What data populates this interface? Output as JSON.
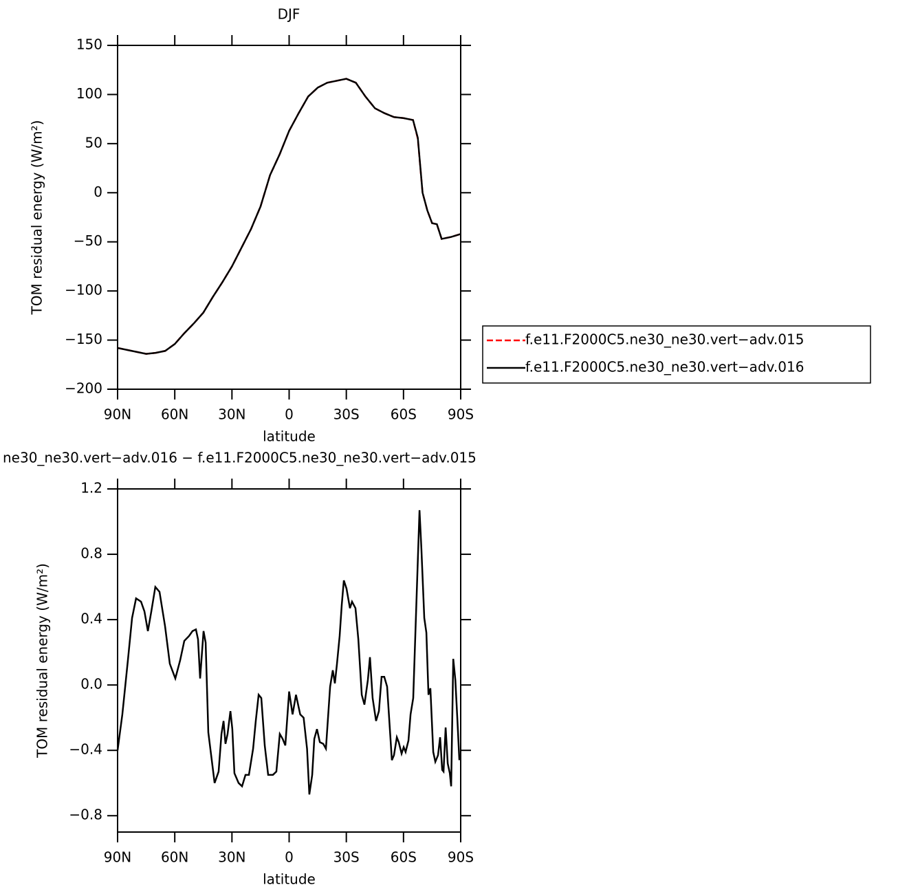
{
  "chart_data": [
    {
      "type": "line",
      "title": "DJF",
      "xlabel": "latitude",
      "ylabel": "TOM residual energy (W/m²)",
      "x": [
        90,
        85,
        80,
        75,
        70,
        65,
        60,
        55,
        50,
        45,
        40,
        35,
        30,
        25,
        20,
        15,
        10,
        5,
        0,
        -5,
        -10,
        -15,
        -20,
        -25,
        -30,
        -35,
        -40,
        -45,
        -50,
        -55,
        -60,
        -65,
        -67.5,
        -70,
        -72.5,
        -75,
        -77.5,
        -80,
        -85,
        -90
      ],
      "series": [
        {
          "name": "f.e11.F2000C5.ne30_ne30.vert−adv.015",
          "color": "#ff0000",
          "dashed": true,
          "values": [
            -158,
            -160,
            -162,
            -164,
            -163,
            -161,
            -154,
            -143,
            -133,
            -122,
            -106,
            -91,
            -75,
            -56,
            -37,
            -14,
            18,
            39,
            63,
            81,
            98,
            107,
            112,
            114,
            116,
            112,
            98,
            86,
            81,
            77,
            76,
            74,
            55,
            0,
            -18,
            -31,
            -32,
            -47,
            -45,
            -42
          ]
        },
        {
          "name": "f.e11.F2000C5.ne30_ne30.vert−adv.016",
          "color": "#000000",
          "dashed": false,
          "values": [
            -158,
            -160,
            -162,
            -164,
            -163,
            -161,
            -154,
            -143,
            -133,
            -122,
            -106,
            -91,
            -75,
            -56,
            -37,
            -14,
            18,
            39,
            63,
            81,
            98,
            107,
            112,
            114,
            116,
            112,
            98,
            86,
            81,
            77,
            76,
            74,
            56,
            0,
            -18,
            -31,
            -32,
            -47,
            -45,
            -42
          ]
        }
      ],
      "xlim": [
        90,
        -90
      ],
      "xticks": [
        {
          "value": 90,
          "label": "90N"
        },
        {
          "value": 60,
          "label": "60N"
        },
        {
          "value": 30,
          "label": "30N"
        },
        0,
        {
          "value": -30,
          "label": "30S"
        },
        {
          "value": -60,
          "label": "60S"
        },
        {
          "value": -90,
          "label": "90S"
        }
      ],
      "ylim": [
        -200,
        150
      ],
      "yticks": [
        {
          "value": -200,
          "label": "−200"
        },
        {
          "value": -150,
          "label": "−150"
        },
        {
          "value": -100,
          "label": "−100"
        },
        {
          "value": -50,
          "label": "−50"
        },
        0,
        50,
        100,
        150
      ],
      "legend": "outside-right"
    },
    {
      "type": "line",
      "title": "ne30_ne30.vert−adv.016 − f.e11.F2000C5.ne30_ne30.vert−adv.015",
      "xlabel": "latitude",
      "ylabel": "TOM residual energy (W/m²)",
      "x": [
        90,
        87.5,
        84.6,
        82.4,
        80.3,
        77.7,
        75.9,
        74.1,
        72.3,
        70.2,
        68.0,
        65.1,
        62.6,
        59.7,
        57.2,
        55.0,
        52.5,
        50.7,
        48.9,
        47.8,
        46.7,
        44.9,
        43.8,
        42.4,
        39.1,
        37.0,
        35.5,
        34.4,
        33.4,
        32.3,
        30.8,
        29.8,
        28.7,
        26.5,
        24.7,
        22.9,
        21.1,
        18.9,
        17.5,
        16.0,
        14.6,
        12.8,
        11.0,
        8.5,
        6.7,
        4.9,
        3.4,
        2.0,
        0,
        -1.8,
        -3.6,
        -5.8,
        -7.6,
        -9.4,
        -10.6,
        -12.1,
        -13.2,
        -14.6,
        -16.1,
        -17.9,
        -19.3,
        -21.5,
        -22.9,
        -24.0,
        -25.1,
        -26.5,
        -27.6,
        -28.7,
        -30.1,
        -31.9,
        -33.0,
        -34.8,
        -36.3,
        -38.1,
        -39.5,
        -41.3,
        -42.4,
        -43.8,
        -45.6,
        -47.1,
        -48.5,
        -49.9,
        -51.4,
        -53.9,
        -55.0,
        -56.5,
        -57.5,
        -59.0,
        -60.1,
        -61.1,
        -62.6,
        -63.7,
        -65.1,
        -66.9,
        -68.4,
        -69.4,
        -70.9,
        -72.0,
        -73.1,
        -74.1,
        -75.6,
        -76.7,
        -78.1,
        -79.2,
        -80.3,
        -81.0,
        -82.1,
        -83.2,
        -84.3,
        -85.0,
        -86.1,
        -87.2,
        -88.3,
        -89.3
      ],
      "color": "#000000",
      "values": [
        -0.4,
        -0.18,
        0.15,
        0.41,
        0.53,
        0.51,
        0.45,
        0.33,
        0.45,
        0.6,
        0.57,
        0.36,
        0.13,
        0.04,
        0.15,
        0.27,
        0.3,
        0.33,
        0.34,
        0.28,
        0.04,
        0.33,
        0.26,
        -0.29,
        -0.6,
        -0.53,
        -0.3,
        -0.22,
        -0.36,
        -0.3,
        -0.16,
        -0.27,
        -0.54,
        -0.6,
        -0.62,
        -0.55,
        -0.55,
        -0.39,
        -0.22,
        -0.06,
        -0.08,
        -0.37,
        -0.55,
        -0.55,
        -0.53,
        -0.3,
        -0.33,
        -0.37,
        -0.04,
        -0.18,
        -0.06,
        -0.18,
        -0.2,
        -0.39,
        -0.67,
        -0.55,
        -0.33,
        -0.27,
        -0.35,
        -0.36,
        -0.39,
        -0.01,
        0.09,
        0.01,
        0.13,
        0.3,
        0.49,
        0.64,
        0.59,
        0.47,
        0.51,
        0.47,
        0.28,
        -0.06,
        -0.12,
        0.03,
        0.17,
        -0.08,
        -0.22,
        -0.16,
        0.05,
        0.05,
        -0.01,
        -0.46,
        -0.43,
        -0.32,
        -0.35,
        -0.42,
        -0.38,
        -0.41,
        -0.34,
        -0.18,
        -0.08,
        0.55,
        1.07,
        0.83,
        0.41,
        0.32,
        -0.06,
        -0.02,
        -0.41,
        -0.47,
        -0.43,
        -0.32,
        -0.52,
        -0.53,
        -0.26,
        -0.48,
        -0.54,
        -0.62,
        0.16,
        0.03,
        -0.22,
        -0.46
      ],
      "xlim": [
        90,
        -90
      ],
      "xticks": [
        {
          "value": 90,
          "label": "90N"
        },
        {
          "value": 60,
          "label": "60N"
        },
        {
          "value": 30,
          "label": "30N"
        },
        0,
        {
          "value": -30,
          "label": "30S"
        },
        {
          "value": -60,
          "label": "60S"
        },
        {
          "value": -90,
          "label": "90S"
        }
      ],
      "ylim": [
        -0.9,
        1.2
      ],
      "yticks": [
        {
          "value": -0.8,
          "label": "−0.8"
        },
        {
          "value": -0.4,
          "label": "−0.4"
        },
        {
          "value": 0,
          "label": "0.0"
        },
        0.4,
        0.8,
        1.2
      ]
    }
  ]
}
